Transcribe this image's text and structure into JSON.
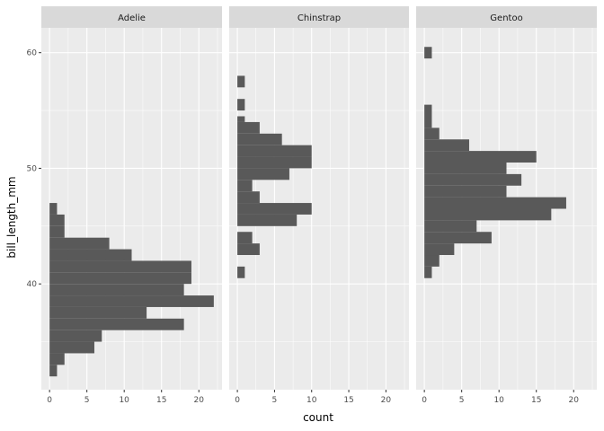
{
  "chart_data": {
    "type": "bar",
    "orientation": "horizontal-histogram",
    "xlabel": "count",
    "ylabel": "bill_length_mm",
    "xlim": [
      -1.1,
      23.1
    ],
    "ylim": [
      30.85,
      62.15
    ],
    "x_ticks": [
      0,
      5,
      10,
      15,
      20
    ],
    "x_tick_labels": [
      "0",
      "5",
      "10",
      "15",
      "20"
    ],
    "y_ticks": [
      40,
      50,
      60
    ],
    "y_tick_labels": [
      "40",
      "50",
      "60"
    ],
    "grid": true,
    "colors": {
      "panel": "#ebebeb",
      "grid_major": "#ffffff",
      "bar": "#595959",
      "strip": "#d9d9d9"
    },
    "facets": [
      {
        "name": "Adelie",
        "bins": [
          {
            "y0": 32.0,
            "y1": 33.0,
            "count": 1
          },
          {
            "y0": 33.0,
            "y1": 34.0,
            "count": 2
          },
          {
            "y0": 34.0,
            "y1": 35.0,
            "count": 6
          },
          {
            "y0": 35.0,
            "y1": 36.0,
            "count": 7
          },
          {
            "y0": 36.0,
            "y1": 37.0,
            "count": 18
          },
          {
            "y0": 37.0,
            "y1": 38.0,
            "count": 13
          },
          {
            "y0": 38.0,
            "y1": 39.0,
            "count": 22
          },
          {
            "y0": 39.0,
            "y1": 40.0,
            "count": 18
          },
          {
            "y0": 40.0,
            "y1": 41.0,
            "count": 19
          },
          {
            "y0": 41.0,
            "y1": 42.0,
            "count": 19
          },
          {
            "y0": 42.0,
            "y1": 43.0,
            "count": 11
          },
          {
            "y0": 43.0,
            "y1": 44.0,
            "count": 8
          },
          {
            "y0": 44.0,
            "y1": 45.0,
            "count": 2
          },
          {
            "y0": 45.0,
            "y1": 46.0,
            "count": 2
          },
          {
            "y0": 46.0,
            "y1": 47.0,
            "count": 1
          }
        ]
      },
      {
        "name": "Chinstrap",
        "bins": [
          {
            "y0": 40.5,
            "y1": 41.5,
            "count": 1
          },
          {
            "y0": 42.5,
            "y1": 43.5,
            "count": 3
          },
          {
            "y0": 43.5,
            "y1": 44.5,
            "count": 2
          },
          {
            "y0": 45.0,
            "y1": 46.0,
            "count": 8
          },
          {
            "y0": 46.0,
            "y1": 47.0,
            "count": 10
          },
          {
            "y0": 47.0,
            "y1": 48.0,
            "count": 3
          },
          {
            "y0": 48.0,
            "y1": 49.0,
            "count": 2
          },
          {
            "y0": 49.0,
            "y1": 50.0,
            "count": 7
          },
          {
            "y0": 50.0,
            "y1": 51.0,
            "count": 10
          },
          {
            "y0": 51.0,
            "y1": 52.0,
            "count": 10
          },
          {
            "y0": 52.0,
            "y1": 53.0,
            "count": 6
          },
          {
            "y0": 53.0,
            "y1": 54.0,
            "count": 3
          },
          {
            "y0": 54.0,
            "y1": 54.5,
            "count": 1
          },
          {
            "y0": 55.0,
            "y1": 56.0,
            "count": 1
          },
          {
            "y0": 57.0,
            "y1": 58.0,
            "count": 1
          }
        ]
      },
      {
        "name": "Gentoo",
        "bins": [
          {
            "y0": 40.5,
            "y1": 41.5,
            "count": 1
          },
          {
            "y0": 41.5,
            "y1": 42.5,
            "count": 2
          },
          {
            "y0": 42.5,
            "y1": 43.5,
            "count": 4
          },
          {
            "y0": 43.5,
            "y1": 44.5,
            "count": 9
          },
          {
            "y0": 44.5,
            "y1": 45.5,
            "count": 7
          },
          {
            "y0": 45.5,
            "y1": 46.5,
            "count": 17
          },
          {
            "y0": 46.5,
            "y1": 47.5,
            "count": 19
          },
          {
            "y0": 47.5,
            "y1": 48.5,
            "count": 11
          },
          {
            "y0": 48.5,
            "y1": 49.5,
            "count": 13
          },
          {
            "y0": 49.5,
            "y1": 50.5,
            "count": 11
          },
          {
            "y0": 50.5,
            "y1": 51.5,
            "count": 15
          },
          {
            "y0": 51.5,
            "y1": 52.5,
            "count": 6
          },
          {
            "y0": 52.5,
            "y1": 53.5,
            "count": 2
          },
          {
            "y0": 53.5,
            "y1": 54.5,
            "count": 1
          },
          {
            "y0": 54.5,
            "y1": 55.5,
            "count": 1
          },
          {
            "y0": 59.5,
            "y1": 60.5,
            "count": 1
          }
        ]
      }
    ]
  }
}
